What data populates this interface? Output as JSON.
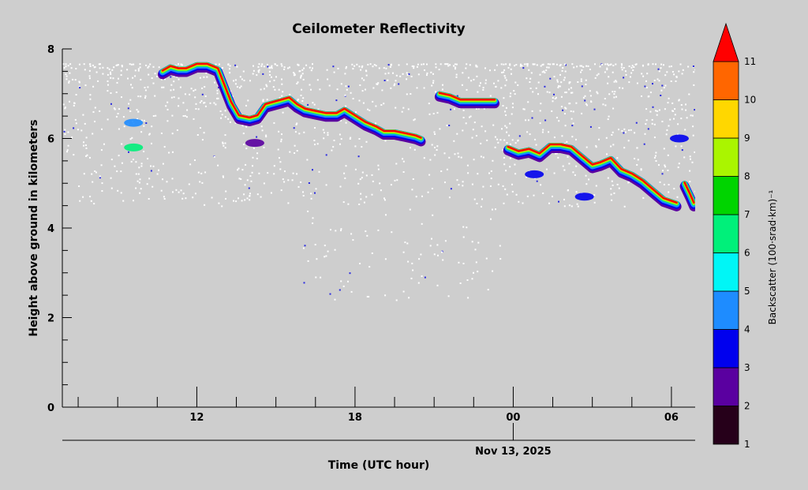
{
  "chart_data": {
    "type": "heatmap",
    "title": "Ceilometer Reflectivity",
    "xlabel": "Time (UTC hour)",
    "ylabel": "Height above ground in kilometers",
    "date_label": "Nov 13, 2025",
    "x_range_hours": [
      6.9,
      30.9
    ],
    "ylim": [
      0,
      8
    ],
    "x_ticks": [
      {
        "hour": 12,
        "label": "12"
      },
      {
        "hour": 18,
        "label": "18"
      },
      {
        "hour": 24,
        "label": "00"
      },
      {
        "hour": 30,
        "label": "06"
      }
    ],
    "y_ticks": [
      {
        "value": 0,
        "label": "0"
      },
      {
        "value": 2,
        "label": "2"
      },
      {
        "value": 4,
        "label": "4"
      },
      {
        "value": 6,
        "label": "6"
      },
      {
        "value": 8,
        "label": "8"
      }
    ],
    "colorbar": {
      "label": "Backscatter (100·srad·km)⁻¹",
      "levels": [
        {
          "value": 1,
          "label": "1",
          "color": "#26001a"
        },
        {
          "value": 2,
          "label": "2",
          "color": "#5a00a0"
        },
        {
          "value": 3,
          "label": "3",
          "color": "#0000ee"
        },
        {
          "value": 4,
          "label": "4",
          "color": "#1e8cff"
        },
        {
          "value": 5,
          "label": "5",
          "color": "#00f6f6"
        },
        {
          "value": 6,
          "label": "6",
          "color": "#00f07a"
        },
        {
          "value": 7,
          "label": "7",
          "color": "#00d400"
        },
        {
          "value": 8,
          "label": "8",
          "color": "#aaf500"
        },
        {
          "value": 9,
          "label": "9",
          "color": "#ffd700"
        },
        {
          "value": 10,
          "label": "10",
          "color": "#ff6600"
        },
        {
          "value": 11,
          "label": "11",
          "color": "#ff0000"
        }
      ],
      "extend_color": "#ff0000"
    },
    "cloud_layers": [
      {
        "name": "cloud-layer-1",
        "points": [
          [
            10.7,
            7.5
          ],
          [
            11.0,
            7.6
          ],
          [
            11.3,
            7.55
          ],
          [
            11.6,
            7.55
          ],
          [
            12.0,
            7.65
          ],
          [
            12.4,
            7.65
          ],
          [
            12.8,
            7.55
          ],
          [
            13.1,
            7.1
          ],
          [
            13.3,
            6.8
          ],
          [
            13.6,
            6.5
          ],
          [
            14.0,
            6.45
          ],
          [
            14.3,
            6.5
          ],
          [
            14.6,
            6.75
          ],
          [
            14.9,
            6.8
          ],
          [
            15.2,
            6.85
          ],
          [
            15.5,
            6.9
          ],
          [
            15.8,
            6.75
          ],
          [
            16.1,
            6.65
          ],
          [
            16.5,
            6.6
          ],
          [
            16.9,
            6.55
          ],
          [
            17.3,
            6.55
          ],
          [
            17.6,
            6.65
          ],
          [
            18.0,
            6.5
          ],
          [
            18.4,
            6.35
          ],
          [
            18.8,
            6.25
          ],
          [
            19.1,
            6.15
          ],
          [
            19.5,
            6.15
          ],
          [
            19.9,
            6.1
          ],
          [
            20.3,
            6.05
          ],
          [
            20.5,
            6.0
          ]
        ]
      },
      {
        "name": "cloud-layer-2",
        "points": [
          [
            21.2,
            7.0
          ],
          [
            21.6,
            6.95
          ],
          [
            22.0,
            6.85
          ],
          [
            22.5,
            6.85
          ],
          [
            22.9,
            6.85
          ],
          [
            23.3,
            6.85
          ]
        ]
      },
      {
        "name": "cloud-layer-3",
        "points": [
          [
            23.8,
            5.8
          ],
          [
            24.2,
            5.7
          ],
          [
            24.6,
            5.75
          ],
          [
            25.0,
            5.65
          ],
          [
            25.4,
            5.85
          ],
          [
            25.8,
            5.85
          ],
          [
            26.2,
            5.8
          ],
          [
            26.6,
            5.6
          ],
          [
            27.0,
            5.4
          ],
          [
            27.3,
            5.45
          ],
          [
            27.7,
            5.55
          ],
          [
            28.1,
            5.3
          ],
          [
            28.5,
            5.2
          ],
          [
            28.9,
            5.05
          ],
          [
            29.3,
            4.85
          ],
          [
            29.7,
            4.65
          ],
          [
            30.2,
            4.55
          ]
        ]
      },
      {
        "name": "cloud-layer-4",
        "points": [
          [
            30.5,
            5.0
          ],
          [
            30.7,
            4.75
          ],
          [
            30.85,
            4.55
          ]
        ]
      }
    ],
    "grid": false
  }
}
